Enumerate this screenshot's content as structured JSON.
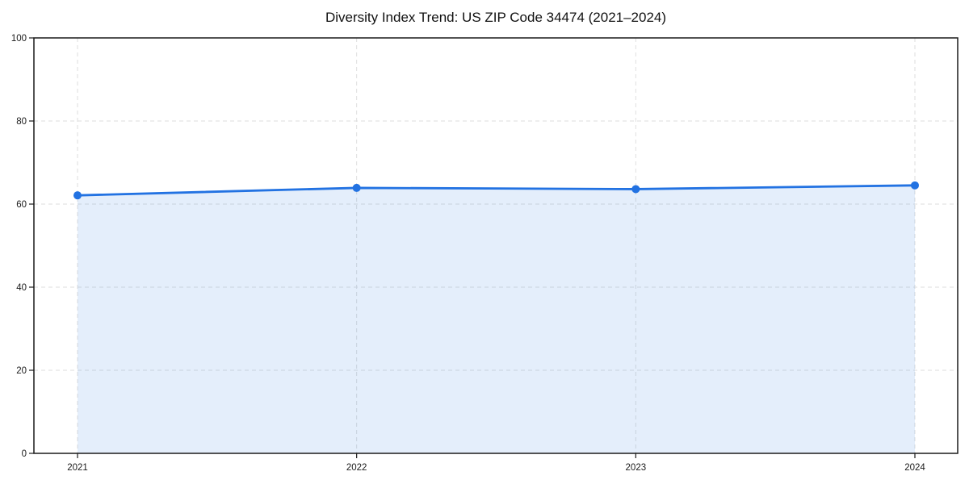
{
  "page": {
    "background": "#ffffff"
  },
  "chart_data": {
    "type": "area",
    "title": "Diversity Index Trend: US ZIP Code 34474 (2021–2024)",
    "x": [
      2021,
      2022,
      2023,
      2024
    ],
    "xtick_labels": [
      "2021",
      "2022",
      "2023",
      "2024"
    ],
    "values": [
      62.1,
      63.9,
      63.6,
      64.5
    ],
    "xlabel": "",
    "ylabel": "",
    "ylim": [
      0,
      100
    ],
    "yticks": [
      0,
      20,
      40,
      60,
      80,
      100
    ],
    "grid": true,
    "grid_style": "dashed",
    "legend": "none",
    "marker": "circle",
    "colors": {
      "line": "#2272e2",
      "marker": "#2272e2",
      "fill": "#2272e2",
      "fill_opacity": 0.12,
      "grid": "#dedede",
      "spine": "#1a1a1a",
      "tick_label": "#1a1a1a",
      "title": "#111111"
    }
  }
}
